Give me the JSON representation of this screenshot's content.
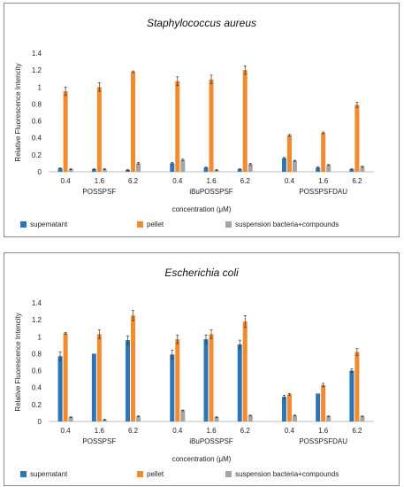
{
  "chart_data": [
    {
      "type": "bar",
      "title": "Staphylococcus aureus",
      "xlabel": "concentration (μM)",
      "ylabel": "Relative Fluorescence Intencity",
      "ylim": [
        0,
        1.4
      ],
      "yticks": [
        "0",
        "0.2",
        "0.4",
        "0.6",
        "0.8",
        "1",
        "1.2",
        "1.4"
      ],
      "groups": [
        {
          "name": "POSSPSF",
          "categories": [
            "0.4",
            "1.6",
            "6.2"
          ]
        },
        {
          "name": "iBuPOSSPSF",
          "categories": [
            "0.4",
            "1.6",
            "6.2"
          ]
        },
        {
          "name": "POSSPSFDAU",
          "categories": [
            "0.4",
            "1.6",
            "6.2"
          ]
        }
      ],
      "series": [
        {
          "name": "supernatant",
          "color": "#2e75b6",
          "values": [
            0.04,
            0.03,
            0.02,
            0.1,
            0.05,
            0.03,
            0.16,
            0.05,
            0.03
          ],
          "errors": [
            0.005,
            0.005,
            0.005,
            0.01,
            0.005,
            0.005,
            0.01,
            0.01,
            0.005
          ]
        },
        {
          "name": "pellet",
          "color": "#f28a30",
          "values": [
            0.95,
            1.0,
            1.18,
            1.07,
            1.09,
            1.2,
            0.43,
            0.46,
            0.79
          ],
          "errors": [
            0.05,
            0.05,
            0.01,
            0.05,
            0.05,
            0.05,
            0.01,
            0.01,
            0.03
          ]
        },
        {
          "name": "suspension bacteria+compounds",
          "color": "#a5a5a5",
          "values": [
            0.03,
            0.03,
            0.1,
            0.14,
            0.02,
            0.09,
            0.13,
            0.08,
            0.06
          ],
          "errors": [
            0.005,
            0.005,
            0.01,
            0.01,
            0.005,
            0.01,
            0.005,
            0.005,
            0.005
          ]
        }
      ],
      "legend": "bottom"
    },
    {
      "type": "bar",
      "title": "Escherichia coli",
      "xlabel": "concentration (μM)",
      "ylabel": "Relative Fluorescence Intencity",
      "ylim": [
        0,
        1.4
      ],
      "yticks": [
        "0",
        "0.2",
        "0.4",
        "0.6",
        "0.8",
        "1",
        "1.2",
        "1.4"
      ],
      "groups": [
        {
          "name": "POSSPSF",
          "categories": [
            "0.4",
            "1.6",
            "6.2"
          ]
        },
        {
          "name": "iBuPOSSPSF",
          "categories": [
            "0.4",
            "1.6",
            "6.2"
          ]
        },
        {
          "name": "POSSPSFDAU",
          "categories": [
            "0.4",
            "1.6",
            "6.2"
          ]
        }
      ],
      "series": [
        {
          "name": "supernatant",
          "color": "#2e75b6",
          "values": [
            0.77,
            0.8,
            0.96,
            0.79,
            0.97,
            0.91,
            0.29,
            0.33,
            0.6
          ],
          "errors": [
            0.05,
            0.0,
            0.05,
            0.05,
            0.05,
            0.05,
            0.02,
            0.0,
            0.02
          ]
        },
        {
          "name": "pellet",
          "color": "#f28a30",
          "values": [
            1.04,
            1.03,
            1.25,
            0.97,
            1.03,
            1.18,
            0.32,
            0.43,
            0.82
          ],
          "errors": [
            0.01,
            0.05,
            0.06,
            0.05,
            0.05,
            0.07,
            0.01,
            0.02,
            0.04
          ]
        },
        {
          "name": "suspension bacteria+compounds",
          "color": "#a5a5a5",
          "values": [
            0.05,
            0.02,
            0.06,
            0.13,
            0.05,
            0.07,
            0.07,
            0.06,
            0.06
          ],
          "errors": [
            0.005,
            0.005,
            0.005,
            0.005,
            0.005,
            0.005,
            0.005,
            0.005,
            0.005
          ]
        }
      ],
      "legend": "bottom"
    }
  ]
}
